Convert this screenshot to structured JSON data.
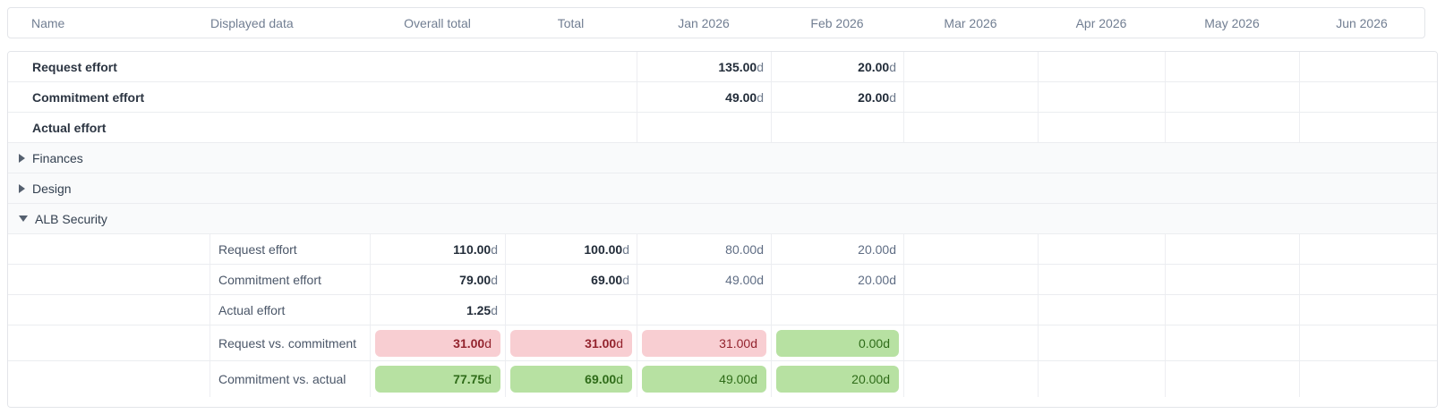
{
  "unit": "d",
  "columns": [
    {
      "label": "Name"
    },
    {
      "label": "Displayed data"
    },
    {
      "label": "Overall total"
    },
    {
      "label": "Total"
    },
    {
      "label": "Jan 2026"
    },
    {
      "label": "Feb 2026"
    },
    {
      "label": "Mar 2026"
    },
    {
      "label": "Apr 2026"
    },
    {
      "label": "May 2026"
    },
    {
      "label": "Jun 2026"
    }
  ],
  "summary_rows": [
    {
      "label": "Request effort",
      "jan": "135.00",
      "feb": "20.00"
    },
    {
      "label": "Commitment effort",
      "jan": "49.00",
      "feb": "20.00"
    },
    {
      "label": "Actual effort"
    }
  ],
  "groups": [
    {
      "label": "Finances",
      "state": "collapsed"
    },
    {
      "label": "Design",
      "state": "collapsed"
    },
    {
      "label": "ALB Security",
      "state": "expanded"
    }
  ],
  "alb_rows": [
    {
      "label": "Request effort",
      "overall": "110.00",
      "total": "100.00",
      "jan": "80.00",
      "feb": "20.00"
    },
    {
      "label": "Commitment effort",
      "overall": "79.00",
      "total": "69.00",
      "jan": "49.00",
      "feb": "20.00"
    },
    {
      "label": "Actual effort",
      "overall": "1.25"
    },
    {
      "label": "Request vs. commitment",
      "overall": "31.00",
      "total": "31.00",
      "jan": "31.00",
      "feb": "0.00",
      "overall_state": "negative",
      "total_state": "negative",
      "jan_state": "negative",
      "feb_state": "positive"
    },
    {
      "label": "Commitment vs. actual",
      "overall": "77.75",
      "total": "69.00",
      "jan": "49.00",
      "feb": "20.00",
      "overall_state": "positive",
      "total_state": "positive",
      "jan_state": "positive",
      "feb_state": "positive"
    }
  ],
  "colors": {
    "negative_chip_bg": "#f8ced2",
    "negative_chip_text": "#93232d",
    "positive_chip_bg": "#b7e1a2",
    "positive_chip_text": "#2e6b18",
    "header_text": "#717e92",
    "group_row_bg": "#f9fafb"
  }
}
